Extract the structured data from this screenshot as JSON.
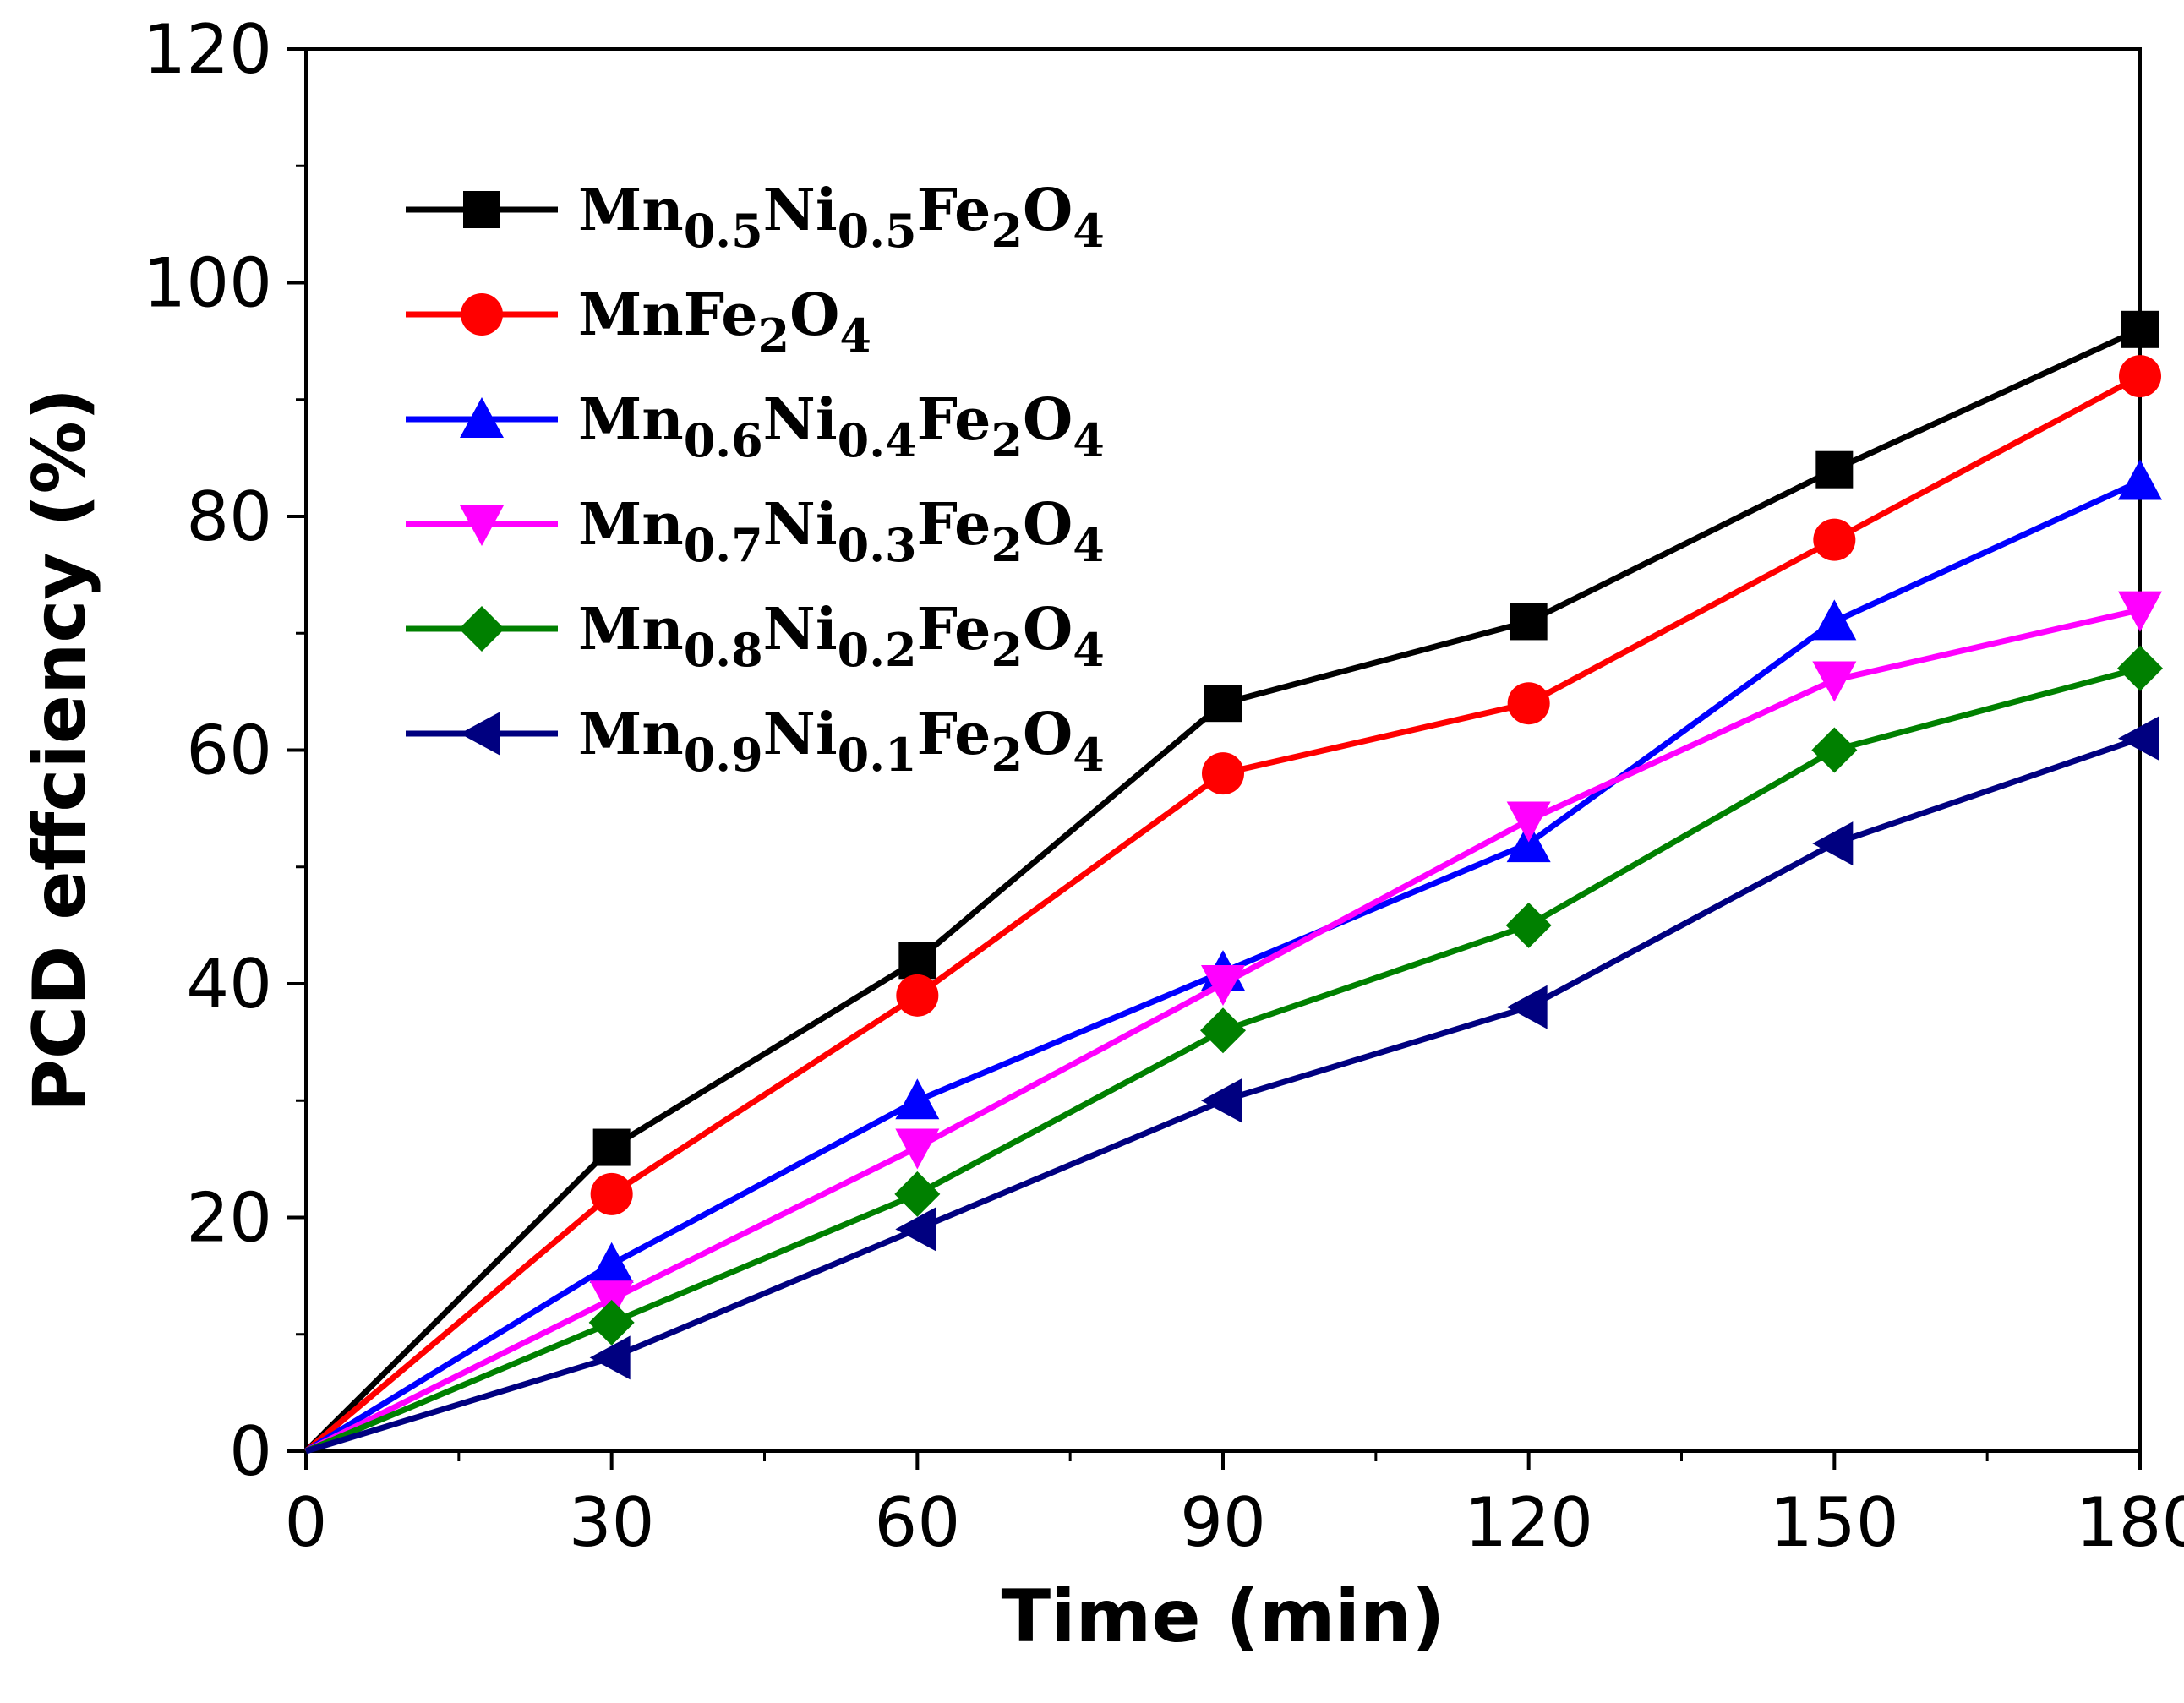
{
  "chart_data": {
    "type": "line",
    "title": "",
    "xlabel": "Time (min)",
    "ylabel": "PCD effciency (%)",
    "xlim": [
      0,
      180
    ],
    "ylim": [
      0,
      120
    ],
    "x": [
      0,
      30,
      60,
      90,
      120,
      150,
      180
    ],
    "x_ticks": [
      0,
      30,
      60,
      90,
      120,
      150,
      180
    ],
    "x_tick_labels": [
      "0",
      "30",
      "60",
      "90",
      "120",
      "150",
      "180"
    ],
    "y_ticks": [
      0,
      20,
      40,
      60,
      80,
      100,
      120
    ],
    "y_tick_labels": [
      "0",
      "20",
      "40",
      "60",
      "80",
      "100",
      "120"
    ],
    "grid": false,
    "legend_position": "top-left",
    "series": [
      {
        "name": "Mn0.5Ni0.5Fe2O4",
        "parts": [
          [
            "Mn",
            ""
          ],
          [
            "0.5",
            "sub"
          ],
          [
            "Ni",
            ""
          ],
          [
            "0.5",
            "sub"
          ],
          [
            "Fe",
            ""
          ],
          [
            "2",
            "sub"
          ],
          [
            "O",
            ""
          ],
          [
            "4",
            "sub"
          ]
        ],
        "color": "#000000",
        "marker": "square",
        "values": [
          0,
          26,
          42,
          64,
          71,
          84,
          96
        ]
      },
      {
        "name": "MnFe2O4",
        "parts": [
          [
            "MnFe",
            ""
          ],
          [
            "2",
            "sub"
          ],
          [
            "O",
            ""
          ],
          [
            "4",
            "sub"
          ]
        ],
        "color": "#ff0000",
        "marker": "circle",
        "values": [
          0,
          22,
          39,
          58,
          64,
          78,
          92
        ]
      },
      {
        "name": "Mn0.6Ni0.4Fe2O4",
        "parts": [
          [
            "Mn",
            ""
          ],
          [
            "0.6",
            "sub"
          ],
          [
            "Ni",
            ""
          ],
          [
            "0.4",
            "sub"
          ],
          [
            "Fe",
            ""
          ],
          [
            "2",
            "sub"
          ],
          [
            "O",
            ""
          ],
          [
            "4",
            "sub"
          ]
        ],
        "color": "#0000ff",
        "marker": "triangle-up",
        "values": [
          0,
          16,
          30,
          41,
          52,
          71,
          83
        ]
      },
      {
        "name": "Mn0.7Ni0.3Fe2O4",
        "parts": [
          [
            "Mn",
            ""
          ],
          [
            "0.7",
            "sub"
          ],
          [
            "Ni",
            ""
          ],
          [
            "0.3",
            "sub"
          ],
          [
            "Fe",
            ""
          ],
          [
            "2",
            "sub"
          ],
          [
            "O",
            ""
          ],
          [
            "4",
            "sub"
          ]
        ],
        "color": "#ff00ff",
        "marker": "triangle-down",
        "values": [
          0,
          13,
          26,
          40,
          54,
          66,
          72
        ]
      },
      {
        "name": "Mn0.8Ni0.2Fe2O4",
        "parts": [
          [
            "Mn",
            ""
          ],
          [
            "0.8",
            "sub"
          ],
          [
            "Ni",
            ""
          ],
          [
            "0.2",
            "sub"
          ],
          [
            "Fe",
            ""
          ],
          [
            "2",
            "sub"
          ],
          [
            "O",
            ""
          ],
          [
            "4",
            "sub"
          ]
        ],
        "color": "#008000",
        "marker": "diamond",
        "values": [
          0,
          11,
          22,
          36,
          45,
          60,
          67
        ]
      },
      {
        "name": "Mn0.9Ni0.1Fe2O4",
        "parts": [
          [
            "Mn",
            ""
          ],
          [
            "0.9",
            "sub"
          ],
          [
            "Ni",
            ""
          ],
          [
            "0.1",
            "sub"
          ],
          [
            "Fe",
            ""
          ],
          [
            "2",
            "sub"
          ],
          [
            "O",
            ""
          ],
          [
            "4",
            "sub"
          ]
        ],
        "color": "#000080",
        "marker": "triangle-left",
        "values": [
          0,
          8,
          19,
          30,
          38,
          52,
          61
        ]
      }
    ]
  }
}
